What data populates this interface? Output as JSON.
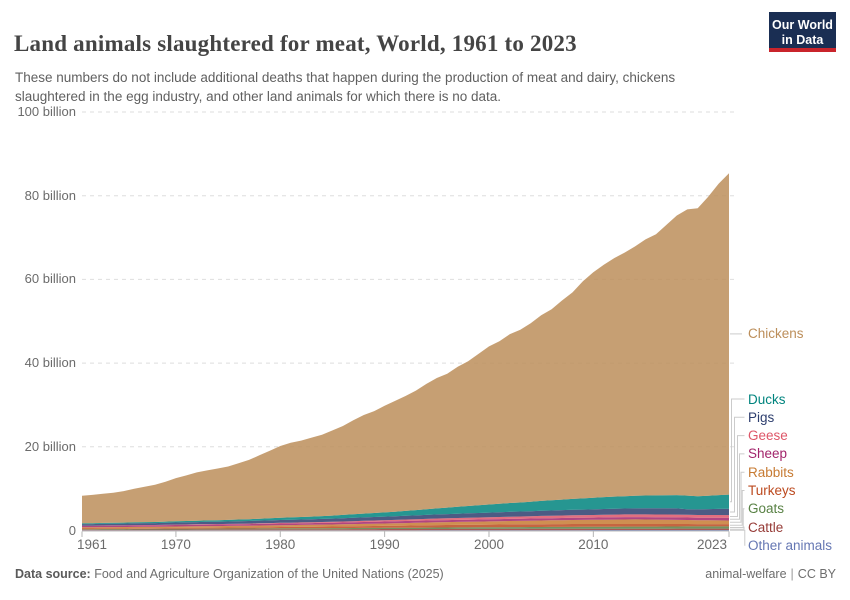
{
  "header": {
    "title": "Land animals slaughtered for meat, World, 1961 to 2023",
    "subtitle": "These numbers do not include additional deaths that happen during the production of meat and dairy, chickens slaughtered in the egg industry, and other land animals for which there is no data.",
    "logo": {
      "line1": "Our World",
      "line2": "in Data",
      "bg": "#1a2e53",
      "accent": "#c9242b"
    }
  },
  "footer": {
    "source_label": "Data source:",
    "source_text": " Food and Agriculture Organization of the United Nations (2025)",
    "right_label": "animal-welfare",
    "divider": "|",
    "license": "CC BY"
  },
  "chart_data": {
    "type": "area",
    "stacked": true,
    "title": "Land animals slaughtered for meat, World, 1961 to 2023",
    "xlabel": "",
    "ylabel": "",
    "unit": "billion animals per year",
    "ylim": [
      0,
      100
    ],
    "grid": true,
    "legend_position": "right",
    "y_ticks": [
      {
        "value": 0,
        "label": "0"
      },
      {
        "value": 20,
        "label": "20 billion"
      },
      {
        "value": 40,
        "label": "40 billion"
      },
      {
        "value": 60,
        "label": "60 billion"
      },
      {
        "value": 80,
        "label": "80 billion"
      },
      {
        "value": 100,
        "label": "100 billion"
      }
    ],
    "x_ticks": [
      1961,
      1970,
      1980,
      1990,
      2000,
      2010,
      2023
    ],
    "years": [
      1961,
      1962,
      1963,
      1964,
      1965,
      1966,
      1967,
      1968,
      1969,
      1970,
      1971,
      1972,
      1973,
      1974,
      1975,
      1976,
      1977,
      1978,
      1979,
      1980,
      1981,
      1982,
      1983,
      1984,
      1985,
      1986,
      1987,
      1988,
      1989,
      1990,
      1991,
      1992,
      1993,
      1994,
      1995,
      1996,
      1997,
      1998,
      1999,
      2000,
      2001,
      2002,
      2003,
      2004,
      2005,
      2006,
      2007,
      2008,
      2009,
      2010,
      2011,
      2012,
      2013,
      2014,
      2015,
      2016,
      2017,
      2018,
      2019,
      2020,
      2021,
      2022,
      2023
    ],
    "series": [
      {
        "name": "Chickens",
        "color": "#BC8E5A",
        "values": [
          6.58,
          6.76,
          6.95,
          7.18,
          7.54,
          8.03,
          8.44,
          8.88,
          9.53,
          10.33,
          10.91,
          11.56,
          11.96,
          12.35,
          12.76,
          13.46,
          14.17,
          15.14,
          16.14,
          17.15,
          17.86,
          18.27,
          18.87,
          19.46,
          20.36,
          21.26,
          22.46,
          23.56,
          24.36,
          25.46,
          26.46,
          27.46,
          28.56,
          29.96,
          31.16,
          31.96,
          33.46,
          34.56,
          36.16,
          37.76,
          38.86,
          40.36,
          41.26,
          42.66,
          44.36,
          45.66,
          47.56,
          49.36,
          51.9,
          53.9,
          55.5,
          57.0,
          58.2,
          59.6,
          61.2,
          62.4,
          64.6,
          66.8,
          68.4,
          68.8,
          71.4,
          74.4,
          76.8
        ]
      },
      {
        "name": "Ducks",
        "color": "#00847E",
        "values": [
          0.19,
          0.2,
          0.21,
          0.22,
          0.23,
          0.24,
          0.25,
          0.26,
          0.28,
          0.29,
          0.31,
          0.32,
          0.34,
          0.36,
          0.38,
          0.4,
          0.43,
          0.46,
          0.49,
          0.52,
          0.55,
          0.58,
          0.62,
          0.66,
          0.72,
          0.78,
          0.84,
          0.9,
          0.95,
          1.0,
          1.08,
          1.16,
          1.25,
          1.35,
          1.45,
          1.55,
          1.65,
          1.75,
          1.85,
          1.95,
          2.02,
          2.1,
          2.15,
          2.25,
          2.35,
          2.42,
          2.52,
          2.6,
          2.68,
          2.78,
          2.85,
          2.92,
          2.95,
          3.0,
          3.05,
          3.08,
          3.12,
          3.18,
          3.25,
          3.15,
          3.2,
          3.3,
          3.4
        ]
      },
      {
        "name": "Pigs",
        "color": "#2D3E6E",
        "values": [
          0.38,
          0.39,
          0.4,
          0.41,
          0.42,
          0.43,
          0.45,
          0.46,
          0.48,
          0.5,
          0.52,
          0.53,
          0.55,
          0.57,
          0.58,
          0.6,
          0.62,
          0.64,
          0.66,
          0.68,
          0.7,
          0.71,
          0.73,
          0.74,
          0.76,
          0.78,
          0.8,
          0.82,
          0.84,
          0.86,
          0.88,
          0.9,
          0.92,
          0.95,
          0.98,
          1.0,
          1.03,
          1.06,
          1.09,
          1.12,
          1.14,
          1.17,
          1.19,
          1.21,
          1.24,
          1.26,
          1.28,
          1.3,
          1.32,
          1.34,
          1.36,
          1.39,
          1.41,
          1.44,
          1.46,
          1.47,
          1.48,
          1.48,
          1.3,
          1.32,
          1.4,
          1.47,
          1.5
        ]
      },
      {
        "name": "Geese",
        "color": "#DE5668",
        "values": [
          0.04,
          0.04,
          0.05,
          0.05,
          0.06,
          0.06,
          0.07,
          0.07,
          0.08,
          0.08,
          0.09,
          0.09,
          0.1,
          0.1,
          0.11,
          0.12,
          0.13,
          0.14,
          0.15,
          0.16,
          0.17,
          0.18,
          0.19,
          0.2,
          0.22,
          0.24,
          0.26,
          0.28,
          0.3,
          0.32,
          0.34,
          0.36,
          0.38,
          0.4,
          0.42,
          0.44,
          0.45,
          0.46,
          0.47,
          0.48,
          0.5,
          0.52,
          0.54,
          0.55,
          0.57,
          0.58,
          0.6,
          0.61,
          0.62,
          0.63,
          0.64,
          0.64,
          0.65,
          0.65,
          0.66,
          0.66,
          0.66,
          0.67,
          0.67,
          0.65,
          0.66,
          0.66,
          0.67
        ]
      },
      {
        "name": "Sheep",
        "color": "#A2246B",
        "values": [
          0.33,
          0.33,
          0.34,
          0.34,
          0.34,
          0.35,
          0.35,
          0.35,
          0.36,
          0.36,
          0.37,
          0.37,
          0.38,
          0.38,
          0.38,
          0.39,
          0.39,
          0.4,
          0.4,
          0.41,
          0.41,
          0.42,
          0.42,
          0.43,
          0.43,
          0.44,
          0.44,
          0.45,
          0.46,
          0.47,
          0.47,
          0.48,
          0.48,
          0.48,
          0.49,
          0.49,
          0.49,
          0.5,
          0.5,
          0.5,
          0.5,
          0.51,
          0.51,
          0.51,
          0.52,
          0.52,
          0.52,
          0.53,
          0.53,
          0.53,
          0.54,
          0.54,
          0.55,
          0.55,
          0.56,
          0.57,
          0.58,
          0.59,
          0.6,
          0.6,
          0.61,
          0.62,
          0.62
        ]
      },
      {
        "name": "Rabbits",
        "color": "#C77B33",
        "values": [
          0.3,
          0.3,
          0.31,
          0.31,
          0.32,
          0.32,
          0.33,
          0.33,
          0.34,
          0.35,
          0.35,
          0.36,
          0.37,
          0.37,
          0.38,
          0.39,
          0.4,
          0.41,
          0.42,
          0.43,
          0.44,
          0.45,
          0.46,
          0.47,
          0.48,
          0.5,
          0.51,
          0.53,
          0.54,
          0.56,
          0.58,
          0.6,
          0.62,
          0.64,
          0.66,
          0.68,
          0.7,
          0.72,
          0.74,
          0.76,
          0.78,
          0.8,
          0.82,
          0.85,
          0.88,
          0.9,
          0.93,
          0.95,
          0.98,
          1.0,
          1.03,
          1.05,
          1.08,
          1.1,
          1.08,
          1.05,
          1.02,
          0.98,
          0.95,
          0.92,
          0.9,
          0.88,
          0.86
        ]
      },
      {
        "name": "Turkeys",
        "color": "#BC4A1F",
        "values": [
          0.13,
          0.14,
          0.14,
          0.15,
          0.15,
          0.16,
          0.17,
          0.17,
          0.18,
          0.19,
          0.2,
          0.21,
          0.22,
          0.23,
          0.24,
          0.25,
          0.26,
          0.28,
          0.29,
          0.31,
          0.32,
          0.34,
          0.35,
          0.37,
          0.38,
          0.4,
          0.42,
          0.44,
          0.46,
          0.48,
          0.5,
          0.52,
          0.54,
          0.56,
          0.58,
          0.6,
          0.61,
          0.62,
          0.63,
          0.64,
          0.65,
          0.66,
          0.66,
          0.67,
          0.67,
          0.68,
          0.68,
          0.68,
          0.67,
          0.66,
          0.65,
          0.65,
          0.64,
          0.63,
          0.62,
          0.62,
          0.61,
          0.6,
          0.59,
          0.57,
          0.57,
          0.56,
          0.55
        ]
      },
      {
        "name": "Goats",
        "color": "#588144",
        "values": [
          0.13,
          0.13,
          0.14,
          0.14,
          0.14,
          0.15,
          0.15,
          0.16,
          0.16,
          0.17,
          0.17,
          0.18,
          0.18,
          0.19,
          0.19,
          0.2,
          0.2,
          0.21,
          0.21,
          0.22,
          0.22,
          0.23,
          0.24,
          0.24,
          0.25,
          0.26,
          0.26,
          0.27,
          0.28,
          0.29,
          0.3,
          0.31,
          0.32,
          0.33,
          0.34,
          0.35,
          0.36,
          0.37,
          0.38,
          0.39,
          0.4,
          0.41,
          0.42,
          0.43,
          0.44,
          0.44,
          0.45,
          0.46,
          0.47,
          0.47,
          0.48,
          0.48,
          0.49,
          0.49,
          0.5,
          0.5,
          0.51,
          0.51,
          0.52,
          0.52,
          0.52,
          0.53,
          0.53
        ]
      },
      {
        "name": "Cattle",
        "color": "#963B37",
        "values": [
          0.17,
          0.17,
          0.18,
          0.18,
          0.18,
          0.19,
          0.19,
          0.19,
          0.2,
          0.2,
          0.2,
          0.21,
          0.21,
          0.21,
          0.22,
          0.22,
          0.22,
          0.23,
          0.23,
          0.23,
          0.24,
          0.24,
          0.24,
          0.25,
          0.25,
          0.25,
          0.26,
          0.26,
          0.26,
          0.27,
          0.27,
          0.27,
          0.28,
          0.28,
          0.28,
          0.28,
          0.29,
          0.29,
          0.29,
          0.29,
          0.3,
          0.3,
          0.3,
          0.3,
          0.3,
          0.31,
          0.31,
          0.31,
          0.31,
          0.31,
          0.32,
          0.32,
          0.32,
          0.32,
          0.32,
          0.32,
          0.33,
          0.33,
          0.33,
          0.33,
          0.33,
          0.33,
          0.33
        ]
      },
      {
        "name": "Other animals",
        "color": "#6577B3",
        "values": [
          0.04,
          0.04,
          0.04,
          0.04,
          0.04,
          0.05,
          0.05,
          0.05,
          0.05,
          0.05,
          0.05,
          0.05,
          0.06,
          0.06,
          0.06,
          0.06,
          0.06,
          0.06,
          0.06,
          0.07,
          0.07,
          0.07,
          0.07,
          0.07,
          0.07,
          0.07,
          0.08,
          0.08,
          0.08,
          0.08,
          0.08,
          0.08,
          0.08,
          0.09,
          0.09,
          0.09,
          0.09,
          0.09,
          0.09,
          0.09,
          0.09,
          0.1,
          0.1,
          0.1,
          0.1,
          0.1,
          0.1,
          0.1,
          0.1,
          0.11,
          0.11,
          0.11,
          0.11,
          0.11,
          0.11,
          0.11,
          0.11,
          0.12,
          0.12,
          0.12,
          0.12,
          0.12,
          0.12
        ]
      }
    ]
  }
}
